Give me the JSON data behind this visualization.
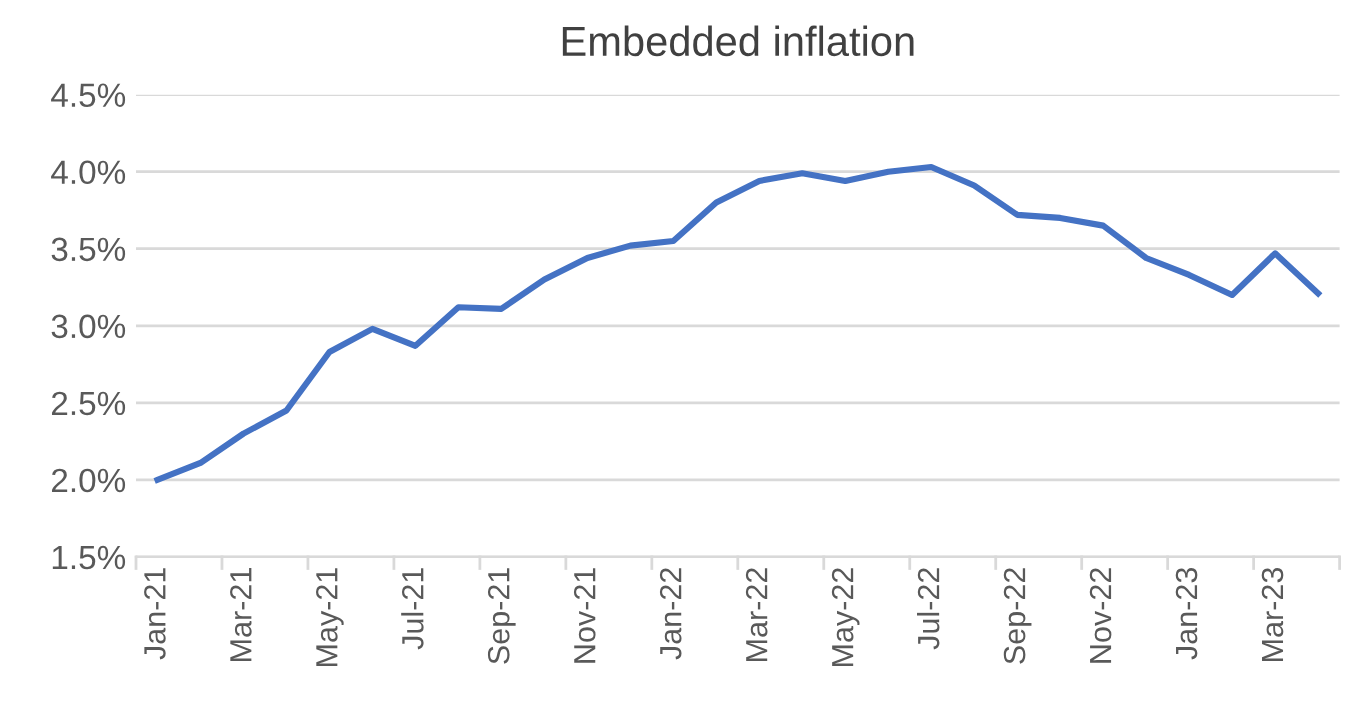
{
  "chart_data": {
    "type": "line",
    "title": "Embedded inflation",
    "categories": [
      "Jan-21",
      null,
      "Mar-21",
      null,
      "May-21",
      null,
      "Jul-21",
      null,
      "Sep-21",
      null,
      "Nov-21",
      null,
      "Jan-22",
      null,
      "Mar-22",
      null,
      "May-22",
      null,
      "Jul-22",
      null,
      "Sep-22",
      null,
      "Nov-22",
      null,
      "Jan-23",
      null,
      "Mar-23",
      null
    ],
    "series": [
      {
        "color": "#4472c4",
        "values": [
          2.0,
          2.11,
          2.3,
          2.45,
          2.83,
          2.98,
          2.87,
          3.12,
          3.11,
          3.3,
          3.44,
          3.52,
          3.55,
          3.8,
          3.94,
          3.99,
          3.94,
          4.0,
          4.03,
          3.91,
          3.72,
          3.7,
          3.65,
          3.44,
          3.33,
          3.2,
          3.47,
          3.21
        ]
      }
    ],
    "ylim": [
      1.5,
      4.5
    ],
    "yticks": [
      {
        "value": 1.5,
        "label": "1.5%"
      },
      {
        "value": 2.0,
        "label": "2.0%"
      },
      {
        "value": 2.5,
        "label": "2.5%"
      },
      {
        "value": 3.0,
        "label": "3.0%"
      },
      {
        "value": 3.5,
        "label": "3.5%"
      },
      {
        "value": 4.0,
        "label": "4.0%"
      },
      {
        "value": 4.5,
        "label": "4.5%"
      }
    ],
    "grid": "y",
    "legend": false,
    "marker": "none",
    "line_style": "solid"
  }
}
